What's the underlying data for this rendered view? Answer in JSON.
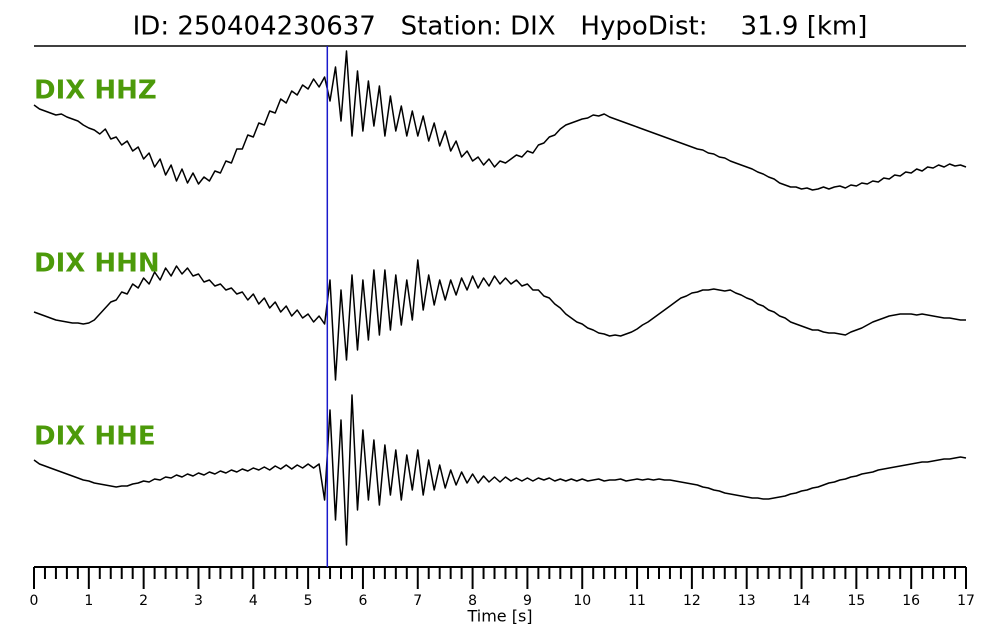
{
  "chart_data": {
    "type": "line",
    "title": "ID: 250404230637   Station: DIX   HypoDist:    31.9 [km]",
    "xlabel": "Time [s]",
    "xlim": [
      0,
      17
    ],
    "xticks": [
      0,
      1,
      2,
      3,
      4,
      5,
      6,
      7,
      8,
      9,
      10,
      11,
      12,
      13,
      14,
      15,
      16,
      17
    ],
    "minor_per_major": 5,
    "ylim": [
      -8.5,
      8.5
    ],
    "label_color": "#4c9a0a",
    "pick": {
      "x": 5.35,
      "color": "#1a1acc"
    },
    "x": [
      0,
      0.1,
      0.2,
      0.3,
      0.4,
      0.5,
      0.6,
      0.7,
      0.8,
      0.9,
      1,
      1.1,
      1.2,
      1.3,
      1.4,
      1.5,
      1.6,
      1.7,
      1.8,
      1.9,
      2,
      2.1,
      2.2,
      2.3,
      2.4,
      2.5,
      2.6,
      2.7,
      2.8,
      2.9,
      3,
      3.1,
      3.2,
      3.3,
      3.4,
      3.5,
      3.6,
      3.7,
      3.8,
      3.9,
      4,
      4.1,
      4.2,
      4.3,
      4.4,
      4.5,
      4.6,
      4.7,
      4.8,
      4.9,
      5,
      5.1,
      5.2,
      5.3,
      5.4,
      5.5,
      5.6,
      5.7,
      5.8,
      5.9,
      6,
      6.1,
      6.2,
      6.3,
      6.4,
      6.5,
      6.6,
      6.7,
      6.8,
      6.9,
      7,
      7.1,
      7.2,
      7.3,
      7.4,
      7.5,
      7.6,
      7.7,
      7.8,
      7.9,
      8,
      8.1,
      8.2,
      8.3,
      8.4,
      8.5,
      8.6,
      8.7,
      8.8,
      8.9,
      9,
      9.1,
      9.2,
      9.3,
      9.4,
      9.5,
      9.6,
      9.7,
      9.8,
      9.9,
      10,
      10.1,
      10.2,
      10.3,
      10.4,
      10.5,
      10.6,
      10.7,
      10.8,
      10.9,
      11,
      11.1,
      11.2,
      11.3,
      11.4,
      11.5,
      11.6,
      11.7,
      11.8,
      11.9,
      12,
      12.1,
      12.2,
      12.3,
      12.4,
      12.5,
      12.6,
      12.7,
      12.8,
      12.9,
      13,
      13.1,
      13.2,
      13.3,
      13.4,
      13.5,
      13.6,
      13.7,
      13.8,
      13.9,
      14,
      14.1,
      14.2,
      14.3,
      14.4,
      14.5,
      14.6,
      14.7,
      14.8,
      14.9,
      15,
      15.1,
      15.2,
      15.3,
      15.4,
      15.5,
      15.6,
      15.7,
      15.8,
      15.9,
      16,
      16.1,
      16.2,
      16.3,
      16.4,
      16.5,
      16.6,
      16.7,
      16.8,
      16.9,
      17
    ],
    "series": [
      {
        "name": "DIX HHZ",
        "color": "#000000",
        "values": [
          2.6,
          2.2,
          2.0,
          1.8,
          1.6,
          1.7,
          1.4,
          1.2,
          1.0,
          0.6,
          0.3,
          0.1,
          -0.3,
          0.2,
          -0.8,
          -0.6,
          -1.4,
          -1.0,
          -2.0,
          -1.6,
          -2.8,
          -2.2,
          -3.6,
          -2.8,
          -4.4,
          -3.4,
          -5.0,
          -3.8,
          -5.2,
          -4.2,
          -5.3,
          -4.6,
          -5.0,
          -4.0,
          -4.2,
          -3.0,
          -3.2,
          -1.8,
          -1.8,
          -0.4,
          -0.6,
          0.8,
          0.6,
          2.0,
          1.8,
          3.2,
          2.8,
          4.0,
          3.6,
          4.6,
          4.2,
          5.2,
          4.4,
          5.4,
          3.0,
          6.4,
          1.0,
          8.0,
          -0.5,
          6.0,
          0.0,
          5.0,
          0.5,
          4.5,
          -0.5,
          3.5,
          0.0,
          2.5,
          -0.5,
          2.0,
          -0.5,
          1.5,
          -1.0,
          0.8,
          -1.5,
          0.0,
          -2.0,
          -1.0,
          -2.6,
          -2.0,
          -3.0,
          -2.6,
          -3.4,
          -2.8,
          -3.6,
          -3.0,
          -3.2,
          -2.8,
          -2.4,
          -2.6,
          -2.0,
          -2.2,
          -1.4,
          -1.2,
          -0.6,
          -0.4,
          0.2,
          0.6,
          0.8,
          1.0,
          1.2,
          1.3,
          1.6,
          1.5,
          1.7,
          1.4,
          1.2,
          1.0,
          0.8,
          0.6,
          0.4,
          0.2,
          0.0,
          -0.2,
          -0.4,
          -0.6,
          -0.8,
          -1.0,
          -1.2,
          -1.4,
          -1.6,
          -1.8,
          -1.9,
          -2.2,
          -2.3,
          -2.6,
          -2.7,
          -3.0,
          -3.2,
          -3.4,
          -3.6,
          -3.8,
          -4.1,
          -4.3,
          -4.6,
          -4.8,
          -5.2,
          -5.4,
          -5.6,
          -5.6,
          -5.8,
          -5.7,
          -5.9,
          -5.8,
          -5.6,
          -5.8,
          -5.6,
          -5.5,
          -5.7,
          -5.4,
          -5.5,
          -5.2,
          -5.3,
          -5.0,
          -5.1,
          -4.7,
          -4.8,
          -4.4,
          -4.5,
          -4.1,
          -4.2,
          -3.8,
          -4.0,
          -3.6,
          -3.7,
          -3.4,
          -3.6,
          -3.3,
          -3.5,
          -3.4,
          -3.6
        ]
      },
      {
        "name": "DIX HHN",
        "color": "#000000",
        "values": [
          -0.2,
          -0.4,
          -0.6,
          -0.8,
          -1.0,
          -1.1,
          -1.2,
          -1.3,
          -1.3,
          -1.4,
          -1.3,
          -1.0,
          -0.4,
          0.2,
          0.8,
          1.0,
          1.8,
          1.6,
          2.6,
          2.2,
          3.2,
          2.6,
          3.8,
          3.0,
          4.2,
          3.4,
          4.4,
          3.6,
          4.2,
          3.4,
          3.6,
          2.8,
          3.0,
          2.4,
          2.6,
          2.0,
          2.2,
          1.6,
          1.8,
          1.0,
          1.6,
          0.6,
          1.2,
          0.2,
          0.8,
          -0.2,
          0.4,
          -0.6,
          0.0,
          -0.8,
          -0.4,
          -1.2,
          -0.6,
          -1.4,
          3.0,
          -7.0,
          2.0,
          -5.0,
          3.5,
          -4.0,
          3.0,
          -3.0,
          4.0,
          -2.5,
          4.0,
          -2.0,
          3.5,
          -1.5,
          3.0,
          -1.0,
          5.0,
          0.0,
          3.5,
          0.5,
          3.0,
          1.0,
          3.0,
          1.5,
          3.2,
          2.0,
          3.4,
          2.2,
          3.2,
          2.4,
          3.4,
          2.6,
          3.2,
          2.6,
          3.0,
          2.4,
          2.6,
          2.0,
          2.0,
          1.4,
          1.2,
          0.6,
          0.2,
          -0.4,
          -0.8,
          -1.2,
          -1.4,
          -1.8,
          -2.0,
          -2.3,
          -2.4,
          -2.6,
          -2.5,
          -2.6,
          -2.4,
          -2.2,
          -1.9,
          -1.5,
          -1.2,
          -0.8,
          -0.4,
          0.0,
          0.4,
          0.8,
          1.2,
          1.4,
          1.7,
          1.8,
          2.0,
          2.0,
          2.1,
          2.0,
          1.9,
          2.0,
          1.7,
          1.5,
          1.2,
          1.0,
          0.6,
          0.4,
          0.0,
          -0.2,
          -0.6,
          -0.8,
          -1.2,
          -1.4,
          -1.6,
          -1.8,
          -2.0,
          -2.0,
          -2.2,
          -2.3,
          -2.3,
          -2.4,
          -2.5,
          -2.2,
          -2.0,
          -1.8,
          -1.5,
          -1.2,
          -1.0,
          -0.8,
          -0.6,
          -0.5,
          -0.4,
          -0.4,
          -0.4,
          -0.5,
          -0.4,
          -0.5,
          -0.6,
          -0.7,
          -0.8,
          -0.8,
          -0.9,
          -1.0,
          -1.0
        ]
      },
      {
        "name": "DIX HHE",
        "color": "#000000",
        "values": [
          2.0,
          1.6,
          1.4,
          1.2,
          1.0,
          0.8,
          0.6,
          0.4,
          0.2,
          0.0,
          -0.1,
          -0.3,
          -0.4,
          -0.5,
          -0.6,
          -0.7,
          -0.6,
          -0.6,
          -0.4,
          -0.3,
          -0.1,
          -0.2,
          0.1,
          0.0,
          0.3,
          0.2,
          0.5,
          0.3,
          0.6,
          0.4,
          0.7,
          0.5,
          0.8,
          0.6,
          0.9,
          0.7,
          1.0,
          0.8,
          1.1,
          0.9,
          1.2,
          1.0,
          1.3,
          1.0,
          1.4,
          1.1,
          1.5,
          1.1,
          1.5,
          1.2,
          1.6,
          1.2,
          1.6,
          -2.0,
          7.0,
          -4.0,
          6.0,
          -6.5,
          8.5,
          -3.0,
          5.0,
          -2.0,
          4.0,
          -2.5,
          3.5,
          -1.5,
          3.0,
          -2.0,
          2.5,
          -1.0,
          3.0,
          -1.5,
          2.0,
          -1.0,
          1.5,
          -0.8,
          1.0,
          -0.5,
          0.8,
          -0.3,
          0.6,
          -0.3,
          0.4,
          -0.2,
          0.3,
          -0.2,
          0.3,
          -0.1,
          0.2,
          -0.1,
          0.2,
          -0.1,
          0.2,
          0.0,
          0.2,
          -0.1,
          0.1,
          -0.1,
          0.1,
          -0.1,
          0.1,
          -0.1,
          0.0,
          0.1,
          -0.1,
          0.0,
          0.0,
          0.1,
          -0.1,
          0.0,
          0.1,
          0.0,
          0.1,
          0.0,
          0.1,
          0.0,
          0.0,
          -0.1,
          -0.2,
          -0.3,
          -0.4,
          -0.5,
          -0.7,
          -0.8,
          -1.0,
          -1.1,
          -1.3,
          -1.4,
          -1.5,
          -1.6,
          -1.7,
          -1.8,
          -1.8,
          -1.9,
          -1.9,
          -1.8,
          -1.7,
          -1.6,
          -1.4,
          -1.3,
          -1.1,
          -1.0,
          -0.8,
          -0.7,
          -0.5,
          -0.3,
          -0.2,
          0.0,
          0.1,
          0.3,
          0.4,
          0.6,
          0.7,
          0.8,
          1.0,
          1.1,
          1.2,
          1.3,
          1.4,
          1.5,
          1.6,
          1.7,
          1.8,
          1.8,
          1.9,
          2.0,
          2.1,
          2.1,
          2.2,
          2.3,
          2.2
        ]
      }
    ]
  }
}
